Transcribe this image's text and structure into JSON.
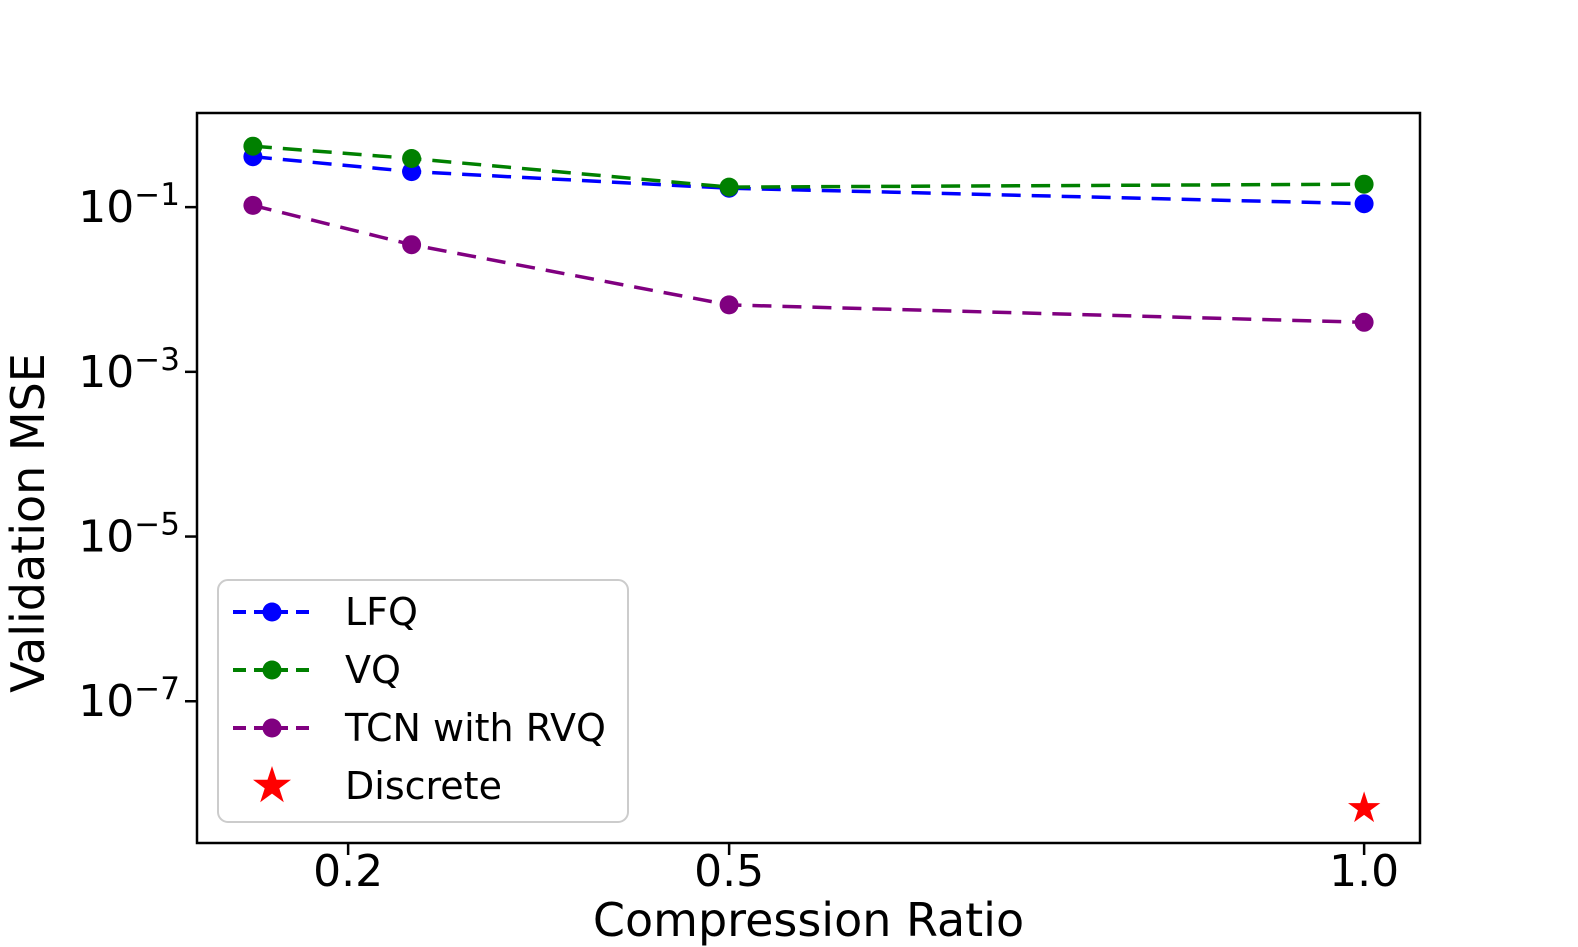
{
  "figure": {
    "background": "#ffffff"
  },
  "chart_data": {
    "type": "line",
    "title": "",
    "xlabel": "Compression Ratio",
    "ylabel": "Validation MSE",
    "xscale": "linear",
    "yscale": "log",
    "xlim": [
      0.081,
      1.044
    ],
    "ylim": [
      1.9e-09,
      1.39
    ],
    "grid": false,
    "axis_color": "#000000",
    "text_color": "#000000",
    "x": [
      0.125,
      0.25,
      0.5,
      1.0
    ],
    "series": [
      {
        "name": "LFQ",
        "color": "#0000ff",
        "linestyle": "dashed",
        "marker": "circle",
        "values": [
          0.41,
          0.27,
          0.17,
          0.11
        ]
      },
      {
        "name": "VQ",
        "color": "#008000",
        "linestyle": "dashed",
        "marker": "circle",
        "values": [
          0.55,
          0.39,
          0.175,
          0.19
        ]
      },
      {
        "name": "TCN with RVQ",
        "color": "#800080",
        "linestyle": "dashed",
        "marker": "circle",
        "values": [
          0.105,
          0.035,
          0.0065,
          0.004
        ]
      }
    ],
    "points": [
      {
        "name": "Discrete",
        "color": "#ff0000",
        "marker": "star",
        "x": 1.0,
        "y": 5e-09
      }
    ],
    "xticks": [
      {
        "value": 0.2,
        "label": "0.2"
      },
      {
        "value": 0.5,
        "label": "0.5"
      },
      {
        "value": 1.0,
        "label": "1.0"
      }
    ],
    "yticks": [
      {
        "value": 0.1,
        "mantissa": "10",
        "exponent": "−1"
      },
      {
        "value": 0.001,
        "mantissa": "10",
        "exponent": "−3"
      },
      {
        "value": 1e-05,
        "mantissa": "10",
        "exponent": "−5"
      },
      {
        "value": 1e-07,
        "mantissa": "10",
        "exponent": "−7"
      }
    ],
    "legend": {
      "position": "lower left",
      "border_color": "#cccccc",
      "background": "rgba(255,255,255,0.8)",
      "entries": [
        "LFQ",
        "VQ",
        "TCN with RVQ",
        "Discrete"
      ]
    }
  }
}
